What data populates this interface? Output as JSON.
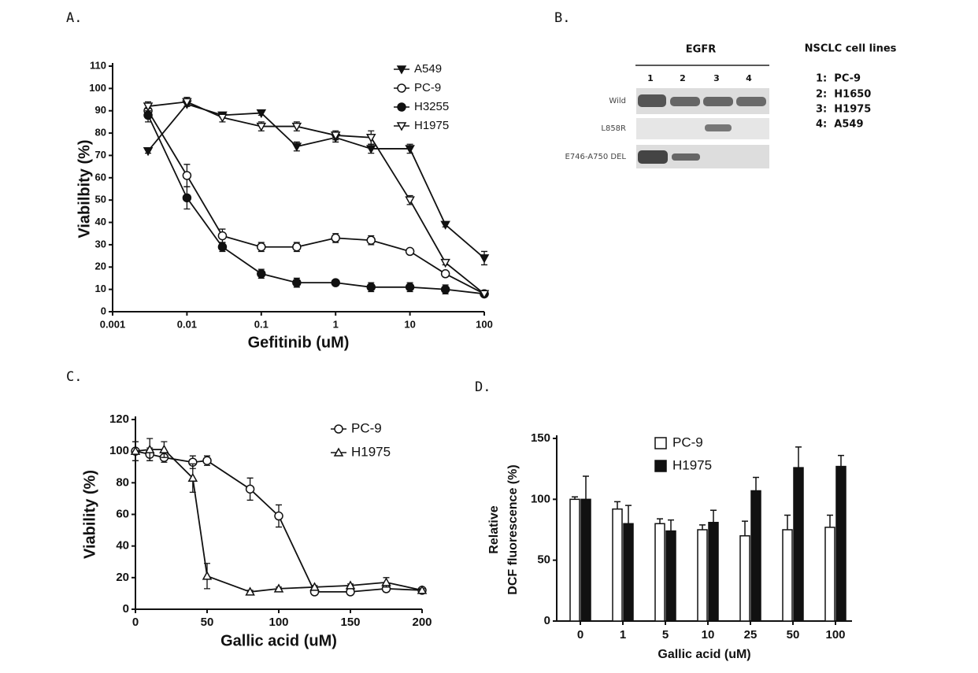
{
  "panel_labels": [
    "A.",
    "B.",
    "C.",
    "D."
  ],
  "blot": {
    "header": "EGFR",
    "lanes": [
      "1",
      "2",
      "3",
      "4"
    ],
    "rows": [
      "Wild",
      "L858R",
      "E746-A750 DEL"
    ],
    "legend_title": "NSCLC cell lines",
    "legend_items": [
      "1:  PC-9",
      "2:  H1650",
      "3:  H1975",
      "4:  A549"
    ]
  },
  "chart_data": [
    {
      "type": "line",
      "xlabel": "Gefitinib (uM)",
      "ylabel": "Viabilbity (%)",
      "xscale": "log",
      "x": [
        0.003,
        0.01,
        0.03,
        0.1,
        0.3,
        1,
        3,
        10,
        30,
        100
      ],
      "xlim": [
        0.001,
        100
      ],
      "xticks": [
        0.001,
        0.01,
        0.1,
        1,
        10,
        100
      ],
      "ylim": [
        0,
        110
      ],
      "yticks": [
        0,
        10,
        20,
        30,
        40,
        50,
        60,
        70,
        80,
        90,
        100,
        110
      ],
      "series": [
        {
          "name": "A549",
          "color": "#111111",
          "marker": "tri-down-filled",
          "values": [
            72,
            93,
            88,
            89,
            74,
            78,
            73,
            73,
            39,
            24
          ],
          "errors": [
            1,
            1,
            1,
            1,
            2,
            2,
            2,
            2,
            1,
            3
          ]
        },
        {
          "name": "PC-9",
          "color": "#111111",
          "marker": "circle-open",
          "values": [
            90,
            61,
            34,
            29,
            29,
            33,
            32,
            27,
            17,
            8
          ],
          "errors": [
            3,
            5,
            3,
            2,
            2,
            2,
            2,
            1,
            1,
            1
          ]
        },
        {
          "name": "H3255",
          "color": "#111111",
          "marker": "circle-filled",
          "values": [
            88,
            51,
            29,
            17,
            13,
            13,
            11,
            11,
            10,
            8
          ],
          "errors": [
            3,
            5,
            2,
            2,
            2,
            1,
            2,
            2,
            2,
            1
          ]
        },
        {
          "name": "H1975",
          "color": "#111111",
          "marker": "tri-down-open",
          "values": [
            92,
            94,
            87,
            83,
            83,
            79,
            78,
            50,
            22,
            8
          ],
          "errors": [
            2,
            2,
            2,
            2,
            2,
            2,
            3,
            2,
            1,
            1
          ]
        }
      ]
    },
    {
      "type": "line",
      "xlabel": "Gallic acid (uM)",
      "ylabel": "Viability (%)",
      "xscale": "linear",
      "x": [
        0,
        10,
        20,
        40,
        50,
        80,
        100,
        125,
        150,
        175,
        200
      ],
      "xlim": [
        0,
        200
      ],
      "xticks": [
        0,
        50,
        100,
        150,
        200
      ],
      "ylim": [
        0,
        120
      ],
      "yticks": [
        0,
        20,
        40,
        60,
        80,
        100,
        120
      ],
      "series": [
        {
          "name": "PC-9",
          "color": "#111111",
          "marker": "circle-open",
          "values": [
            100,
            98,
            96,
            93,
            94,
            76,
            59,
            11,
            11,
            13,
            12
          ],
          "errors": [
            6,
            4,
            3,
            4,
            3,
            7,
            7,
            1,
            1,
            2,
            1
          ]
        },
        {
          "name": "H1975",
          "color": "#111111",
          "marker": "tri-up-open",
          "values": [
            100,
            101,
            101,
            83,
            21,
            11,
            13,
            14,
            15,
            17,
            12
          ],
          "errors": [
            6,
            7,
            5,
            9,
            8,
            1,
            1,
            1,
            1,
            3,
            1
          ]
        }
      ]
    },
    {
      "type": "bar",
      "xlabel": "Gallic acid (uM)",
      "ylabel": [
        "Relative",
        "DCF fluorescence (%)"
      ],
      "categories": [
        "0",
        "1",
        "5",
        "10",
        "25",
        "50",
        "100"
      ],
      "ylim": [
        0,
        150
      ],
      "yticks": [
        0,
        50,
        100,
        150
      ],
      "series": [
        {
          "name": "PC-9",
          "color": "#ffffff",
          "values": [
            100,
            92,
            80,
            75,
            70,
            75,
            77
          ],
          "errors": [
            2,
            6,
            4,
            4,
            12,
            12,
            10
          ]
        },
        {
          "name": "H1975",
          "color": "#111111",
          "values": [
            100,
            80,
            74,
            81,
            107,
            126,
            127
          ],
          "errors": [
            19,
            15,
            9,
            10,
            11,
            17,
            9
          ]
        }
      ]
    }
  ]
}
